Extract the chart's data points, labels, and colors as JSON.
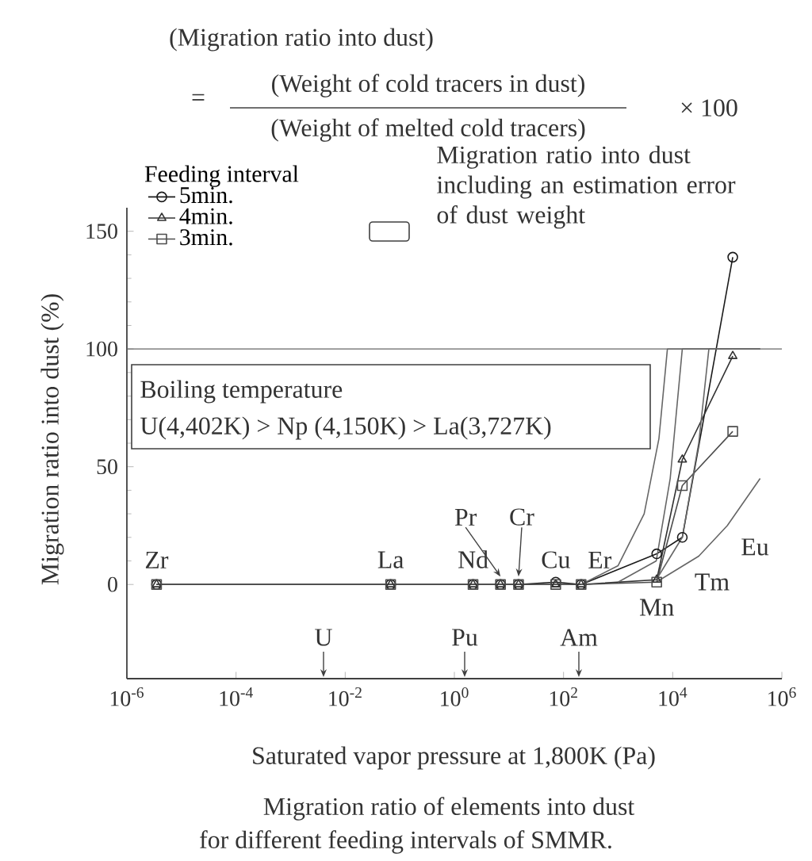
{
  "chart_data": {
    "type": "line",
    "title": "Migration ratio of elements into dust",
    "subtitle": "for different feeding intervals of SMMR.",
    "xlabel": "Saturated vapor pressure at 1,800K (Pa)",
    "ylabel": "Migration ratio into dust (%)",
    "legend_title": "Feeding interval",
    "log": "x",
    "legend": "top left",
    "xlim": [
      1e-06,
      1000000
    ],
    "ylim": [
      -40,
      160
    ],
    "xticks": [
      {
        "value": 1e-06,
        "label": "10$^{-6}$"
      },
      {
        "value": 0.0001,
        "label": "10$^{-4}$"
      },
      {
        "value": 0.01,
        "label": "10$^{-2}$"
      },
      {
        "value": 1,
        "label": "10$^{0}$"
      },
      {
        "value": 100,
        "label": "10$^{2}$"
      },
      {
        "value": 10000,
        "label": "10$^{4}$"
      },
      {
        "value": 1000000,
        "label": "10$^{6}$"
      }
    ],
    "yticks": [
      0,
      50,
      100,
      150
    ],
    "x": [
      3.5e-06,
      0.068,
      2.2,
      7,
      15,
      72,
      210,
      5100,
      15000,
      126000
    ],
    "series": [
      {
        "name": "5min.",
        "color": "#1a1a1a",
        "marker": "circle",
        "values": [
          0,
          0,
          0,
          0,
          0,
          1,
          0,
          13,
          20,
          139
        ]
      },
      {
        "name": "4min.",
        "color": "#333333",
        "marker": "triangle",
        "values": [
          0,
          0,
          0,
          0,
          0,
          0,
          0,
          2,
          53,
          97
        ]
      },
      {
        "name": "3min.",
        "color": "#4d4d4d",
        "marker": "square",
        "values": [
          0,
          0,
          0,
          0,
          0,
          0,
          0,
          1,
          42,
          65
        ]
      },
      {
        "color": "#666666",
        "marker": "none",
        "x": [
          210,
          1000,
          3000,
          5600,
          8000,
          400000
        ],
        "values": [
          0,
          8,
          30,
          62,
          100,
          100
        ]
      },
      {
        "color": "#666666",
        "marker": "none",
        "x": [
          1000,
          5000,
          9000,
          15000,
          400000
        ],
        "values": [
          1,
          10,
          45,
          100,
          100
        ]
      },
      {
        "color": "#666666",
        "marker": "none",
        "x": [
          5000,
          15000,
          30000,
          46000,
          400000
        ],
        "values": [
          2,
          20,
          60,
          100,
          100
        ]
      },
      {
        "color": "#666666",
        "marker": "none",
        "x": [
          5000,
          30000,
          100000,
          400000
        ],
        "values": [
          1,
          12,
          25,
          45
        ]
      }
    ],
    "ref_lines": [
      {
        "axis": "y",
        "value": 100,
        "color": "#666666"
      }
    ],
    "annotations": [
      "(Migration ratio into dust)",
      "=",
      "(Weight of cold tracers in dust)",
      "(Weight of melted cold tracers)",
      "× 100",
      "Migration ratio into dust including an estimation error of dust weight",
      "Boiling temperature",
      "U(4,402K) > Np (4,150K) > La(3,727K)",
      "U",
      "Pu",
      "Am",
      {
        "text": "Zr",
        "x": 3.5e-06,
        "y": 0
      },
      {
        "text": "La",
        "x": 0.068,
        "y": 0
      },
      {
        "text": "Nd",
        "x": 2.2,
        "y": 0
      },
      {
        "text": "Pr",
        "x": 7,
        "y": 0
      },
      {
        "text": "Cr",
        "x": 15,
        "y": 0
      },
      {
        "text": "Cu",
        "x": 72,
        "y": 0
      },
      {
        "text": "Er",
        "x": 210,
        "y": 0
      },
      {
        "text": "Mn",
        "x": 5100,
        "y": 0
      },
      "Eu",
      "Tm"
    ]
  }
}
